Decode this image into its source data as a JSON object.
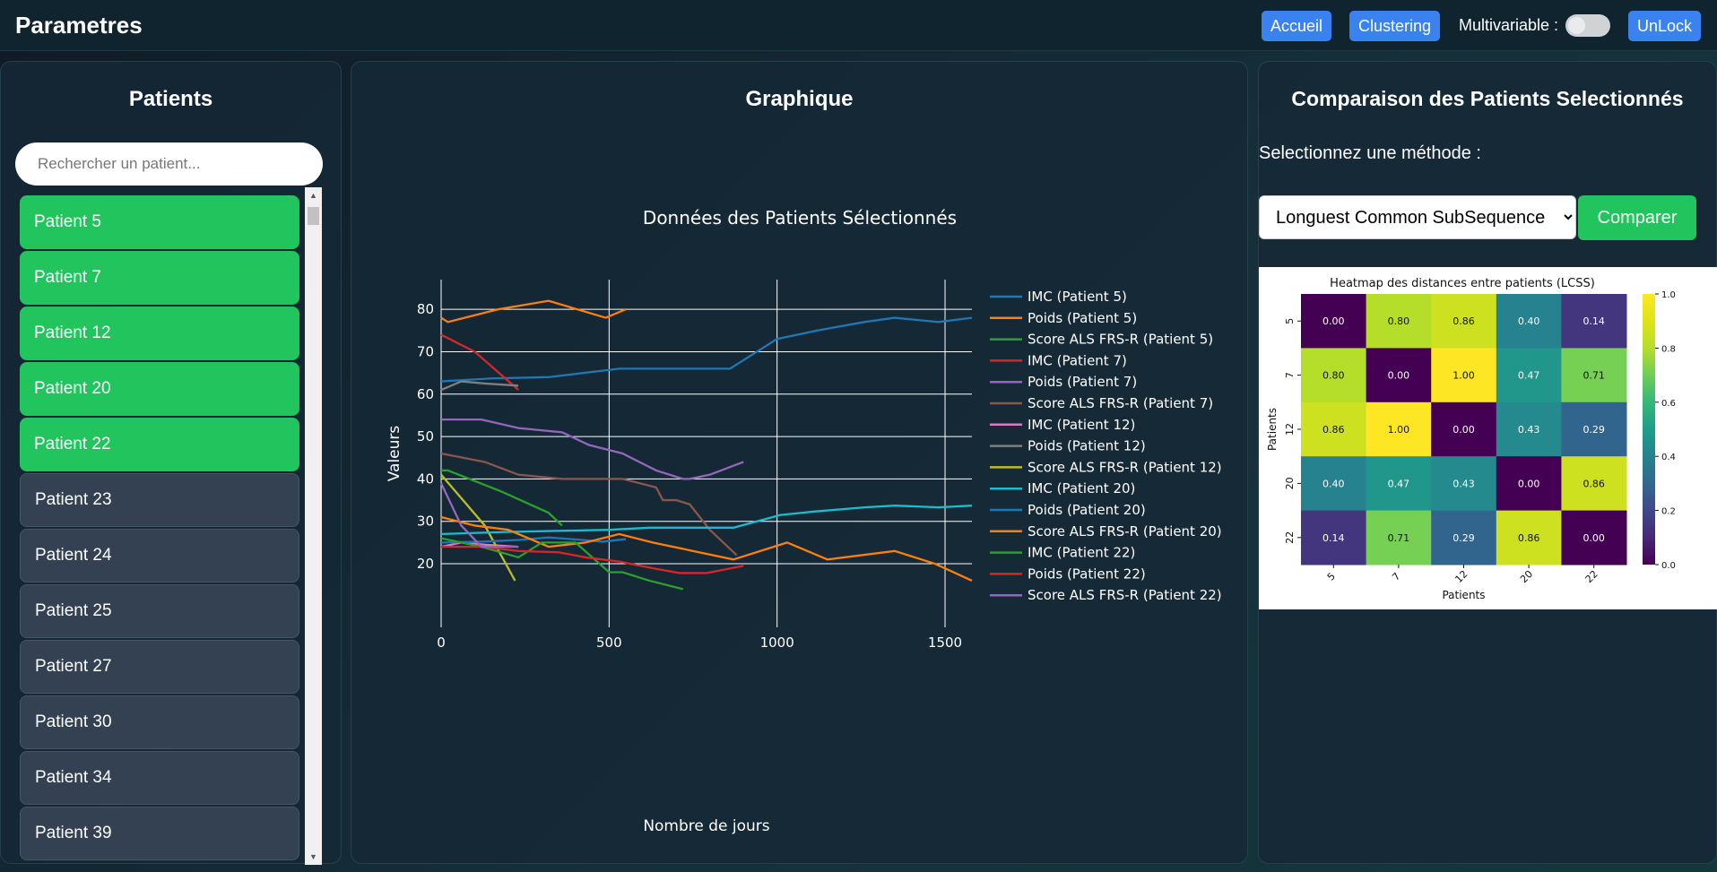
{
  "header": {
    "title": "Parametres",
    "btn_accueil": "Accueil",
    "btn_clustering": "Clustering",
    "multivariable_label": "Multivariable :",
    "btn_unlock": "UnLock"
  },
  "patients_panel": {
    "title": "Patients",
    "search_placeholder": "Rechercher un patient...",
    "items": [
      {
        "label": "Patient 5",
        "selected": true
      },
      {
        "label": "Patient 7",
        "selected": true
      },
      {
        "label": "Patient 12",
        "selected": true
      },
      {
        "label": "Patient 20",
        "selected": true
      },
      {
        "label": "Patient 22",
        "selected": true
      },
      {
        "label": "Patient 23",
        "selected": false
      },
      {
        "label": "Patient 24",
        "selected": false
      },
      {
        "label": "Patient 25",
        "selected": false
      },
      {
        "label": "Patient 27",
        "selected": false
      },
      {
        "label": "Patient 30",
        "selected": false
      },
      {
        "label": "Patient 34",
        "selected": false
      },
      {
        "label": "Patient 39",
        "selected": false
      }
    ]
  },
  "graph_panel": {
    "title": "Graphique"
  },
  "compare_panel": {
    "title": "Comparaison des Patients Selectionnés",
    "method_label": "Selectionnez une méthode :",
    "method_value": "Longuest Common SubSequence",
    "compare_button": "Comparer"
  },
  "chart_data": [
    {
      "type": "line",
      "title": "Données des Patients Sélectionnés",
      "xlabel": "Nombre de jours",
      "ylabel": "Valeurs",
      "xlim": [
        0,
        1580
      ],
      "ylim": [
        5,
        87
      ],
      "xticks": [
        0,
        500,
        1000,
        1500
      ],
      "yticks": [
        20,
        30,
        40,
        50,
        60,
        70,
        80
      ],
      "legend_position": "right",
      "series": [
        {
          "name": "IMC (Patient 5)",
          "color": "#1f77b4",
          "x": [
            0,
            150,
            320,
            530,
            600,
            750,
            860,
            1000,
            1120,
            1260,
            1350,
            1480,
            1580
          ],
          "y": [
            63,
            63.7,
            64,
            66,
            66,
            66,
            66,
            73,
            75,
            77,
            78,
            77,
            78
          ]
        },
        {
          "name": "Poids (Patient 5)",
          "color": "#ff7f0e",
          "x": [
            0,
            20,
            170,
            320,
            490,
            550
          ],
          "y": [
            78,
            77,
            80,
            82,
            78,
            80
          ]
        },
        {
          "name": "Score ALS FRS-R (Patient 5)",
          "color": "#2ca02c",
          "x": [
            0,
            20,
            180,
            320,
            360
          ],
          "y": [
            42,
            42,
            37,
            32,
            29
          ]
        },
        {
          "name": "IMC (Patient 7)",
          "color": "#d62728",
          "x": [
            0,
            100,
            230
          ],
          "y": [
            74,
            70,
            61
          ]
        },
        {
          "name": "Poids (Patient 7)",
          "color": "#9467bd",
          "x": [
            0,
            120,
            230,
            360,
            440,
            540,
            640,
            720,
            740,
            800,
            900
          ],
          "y": [
            54,
            54,
            52,
            51,
            48,
            46,
            42,
            40,
            40,
            41,
            44
          ]
        },
        {
          "name": "Score ALS FRS-R (Patient 7)",
          "color": "#8c564b",
          "x": [
            0,
            130,
            230,
            360,
            540,
            640,
            660,
            700,
            740,
            800,
            880
          ],
          "y": [
            46,
            44,
            41,
            40,
            40,
            38,
            35,
            35,
            34,
            28,
            22
          ]
        },
        {
          "name": "IMC (Patient 12)",
          "color": "#e377c2",
          "x": [
            0,
            60,
            130,
            230
          ],
          "y": [
            24,
            25,
            24.5,
            24
          ]
        },
        {
          "name": "Poids (Patient 12)",
          "color": "#7f7f7f",
          "x": [
            0,
            60,
            130,
            230
          ],
          "y": [
            61,
            63,
            62.5,
            62
          ]
        },
        {
          "name": "Score ALS FRS-R (Patient 12)",
          "color": "#bcbd22",
          "x": [
            0,
            130,
            220
          ],
          "y": [
            41,
            29,
            16
          ]
        },
        {
          "name": "IMC (Patient 20)",
          "color": "#17becf",
          "x": [
            0,
            200,
            500,
            620,
            750,
            870,
            1010,
            1110,
            1260,
            1350,
            1480,
            1580
          ],
          "y": [
            27,
            27.5,
            28,
            28.5,
            28.5,
            28.5,
            31.5,
            32.3,
            33.3,
            33.7,
            33.3,
            33.7
          ]
        },
        {
          "name": "Poids (Patient 20)",
          "color": "#1f77b4",
          "x": [
            0,
            120,
            230,
            320,
            420,
            480,
            550
          ],
          "y": [
            25,
            25.2,
            25.6,
            26.2,
            25.6,
            25.2,
            25.8
          ]
        },
        {
          "name": "Score ALS FRS-R (Patient 20)",
          "color": "#ff7f0e",
          "x": [
            0,
            100,
            200,
            320,
            430,
            530,
            630,
            750,
            870,
            1030,
            1150,
            1350,
            1470,
            1580
          ],
          "y": [
            31,
            29,
            28,
            24,
            25,
            27,
            25,
            23,
            21,
            25,
            21,
            23,
            20,
            16
          ]
        },
        {
          "name": "IMC (Patient 22)",
          "color": "#2ca02c",
          "x": [
            0,
            120,
            230,
            300,
            400,
            500,
            540,
            620,
            720
          ],
          "y": [
            26,
            24,
            21.5,
            25,
            25,
            18,
            18,
            16,
            14
          ]
        },
        {
          "name": "Poids (Patient 22)",
          "color": "#d62728",
          "x": [
            0,
            120,
            230,
            350,
            430,
            530,
            640,
            710,
            790,
            900
          ],
          "y": [
            24,
            24,
            23,
            22.7,
            21.5,
            20.5,
            18.8,
            17.8,
            17.8,
            19.5
          ]
        },
        {
          "name": "Score ALS FRS-R (Patient 22)",
          "color": "#9467bd",
          "x": [
            0,
            60,
            120,
            230
          ],
          "y": [
            39,
            29,
            24,
            24
          ]
        }
      ]
    },
    {
      "type": "heatmap",
      "title": "Heatmap des distances entre patients (LCSS)",
      "xlabel": "Patients",
      "ylabel": "Patients",
      "x_categories": [
        "5",
        "7",
        "12",
        "20",
        "22"
      ],
      "y_categories": [
        "5",
        "7",
        "12",
        "20",
        "22"
      ],
      "values": [
        [
          0.0,
          0.8,
          0.86,
          0.4,
          0.14
        ],
        [
          0.8,
          0.0,
          1.0,
          0.47,
          0.71
        ],
        [
          0.86,
          1.0,
          0.0,
          0.43,
          0.29
        ],
        [
          0.4,
          0.47,
          0.43,
          0.0,
          0.86
        ],
        [
          0.14,
          0.71,
          0.29,
          0.86,
          0.0
        ]
      ],
      "labels": [
        [
          "0.00",
          "0.80",
          "0.86",
          "0.40",
          "0.14"
        ],
        [
          "0.80",
          "0.00",
          "1.00",
          "0.47",
          "0.71"
        ],
        [
          "0.86",
          "1.00",
          "0.00",
          "0.43",
          "0.29"
        ],
        [
          "0.40",
          "0.47",
          "0.43",
          "0.00",
          "0.86"
        ],
        [
          "0.14",
          "0.71",
          "0.29",
          "0.86",
          "0.00"
        ]
      ],
      "colorbar_ticks": [
        "0.0",
        "0.2",
        "0.4",
        "0.6",
        "0.8",
        "1.0"
      ],
      "colorscale": "viridis",
      "vmin": 0,
      "vmax": 1
    }
  ]
}
